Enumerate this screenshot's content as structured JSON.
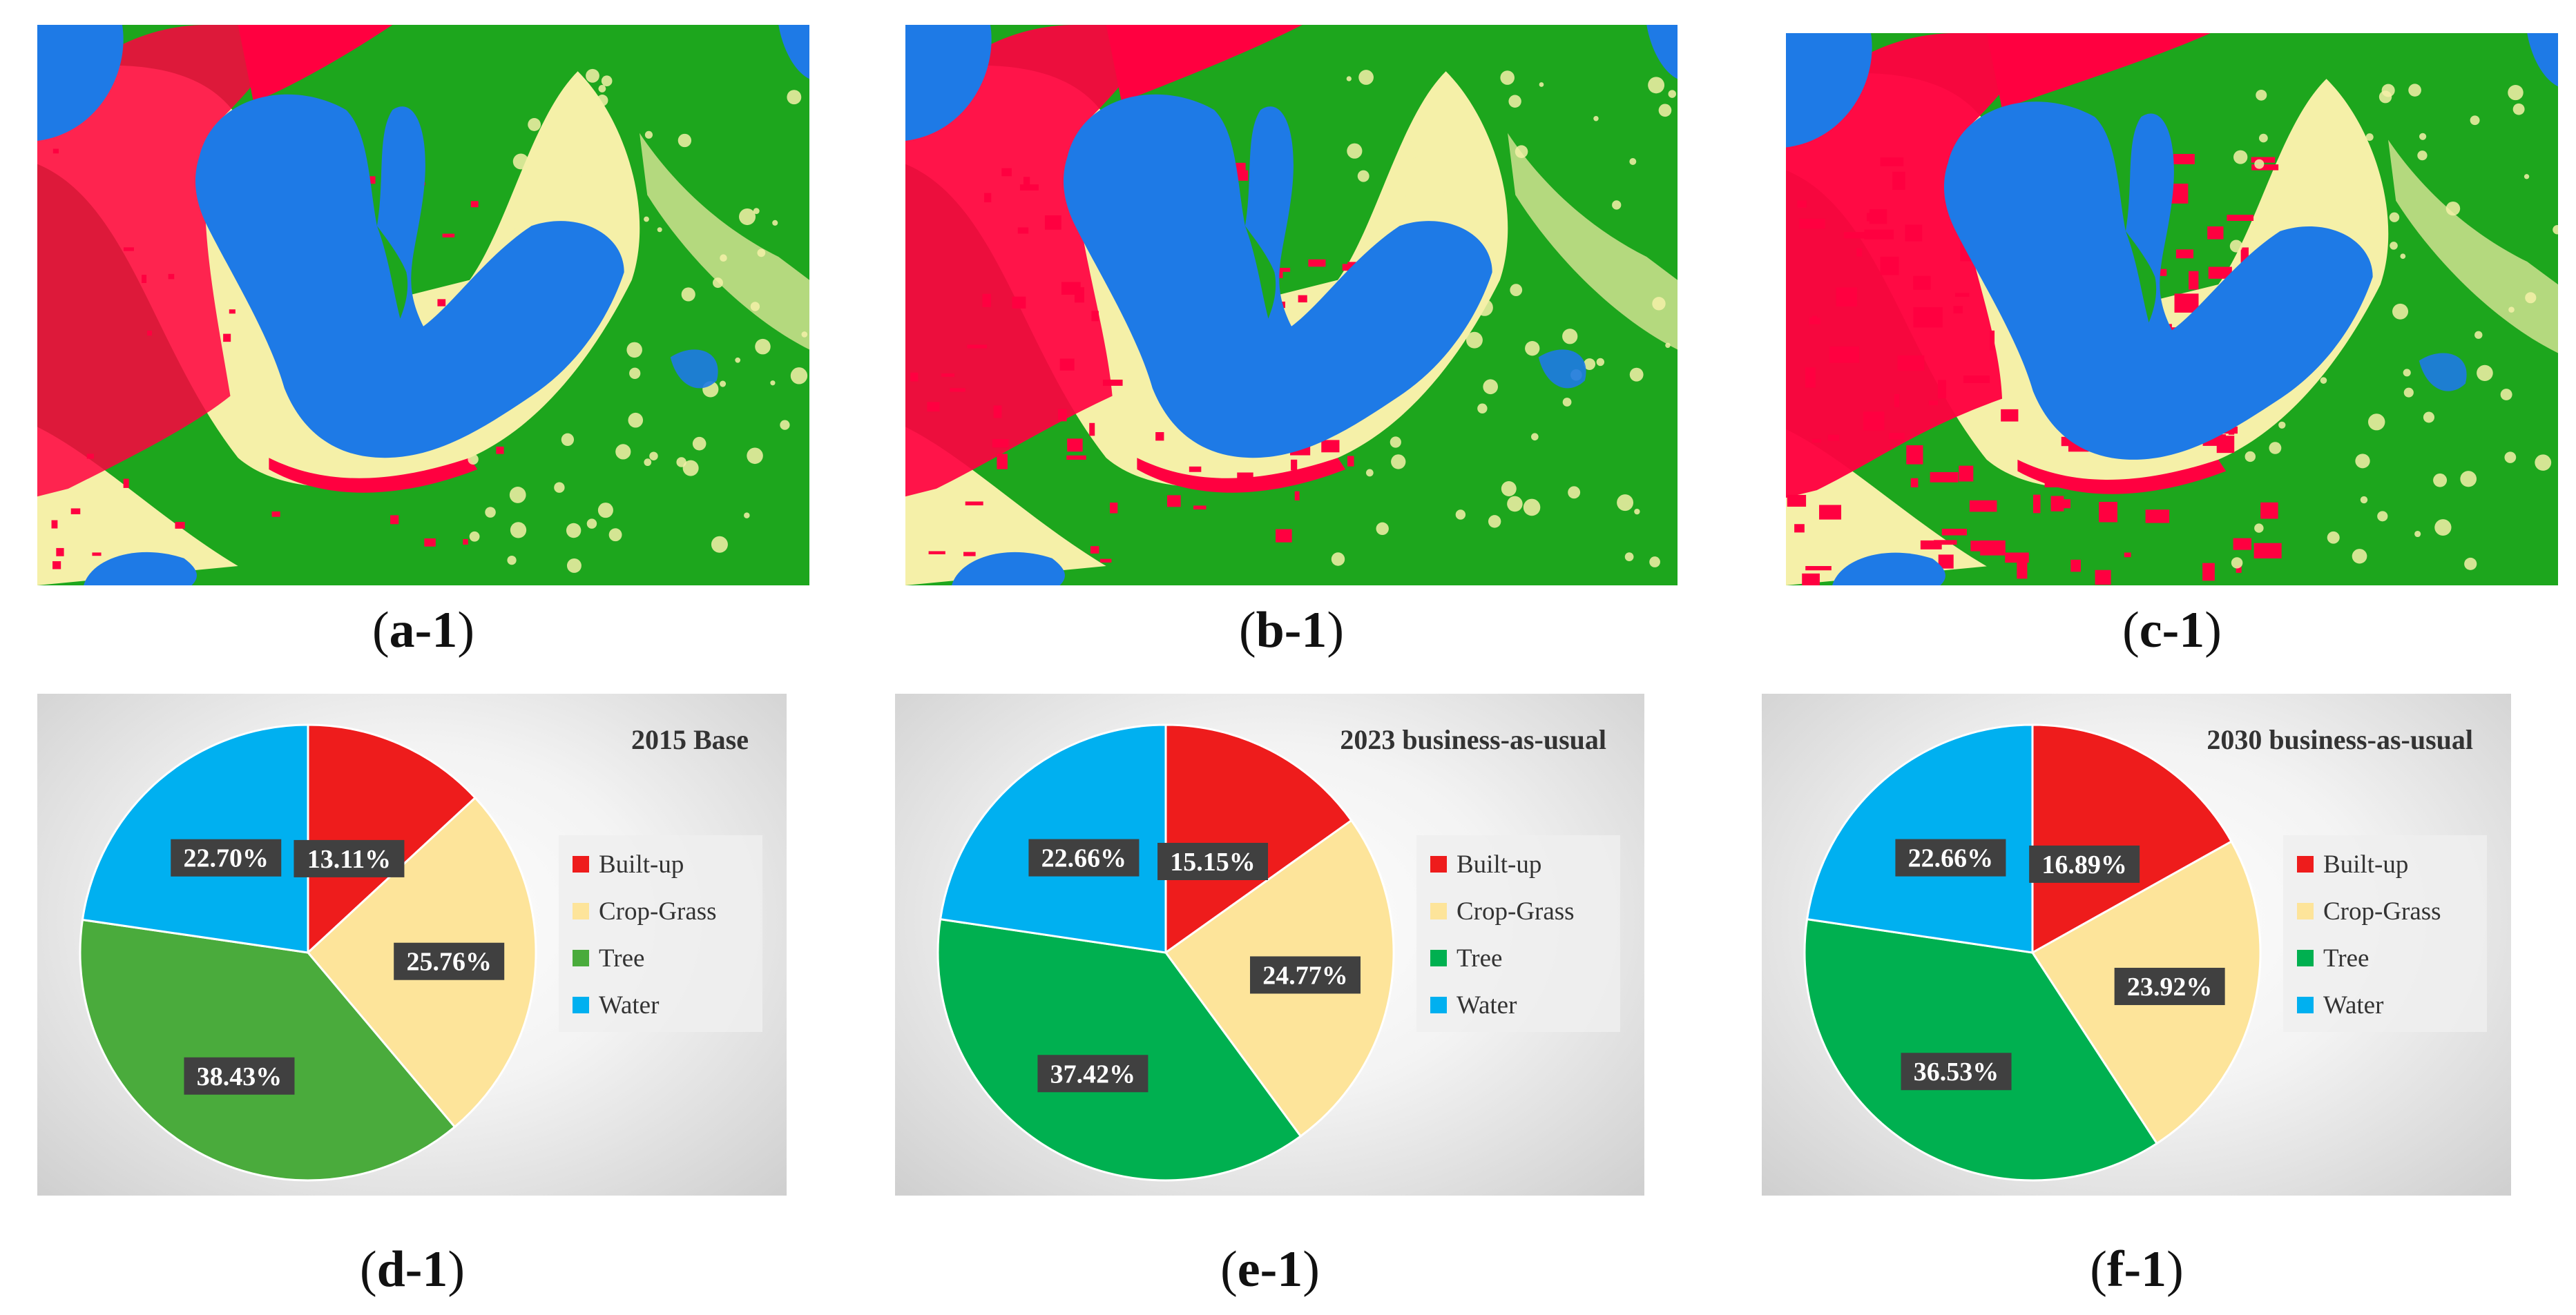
{
  "figure": {
    "map_captions": [
      {
        "letter": "a",
        "suffix": "-1"
      },
      {
        "letter": "b",
        "suffix": "-1"
      },
      {
        "letter": "c",
        "suffix": "-1"
      }
    ],
    "chart_captions": [
      {
        "letter": "d",
        "suffix": "-1"
      },
      {
        "letter": "e",
        "suffix": "-1"
      },
      {
        "letter": "f",
        "suffix": "-1"
      }
    ]
  },
  "map_colors": {
    "Built-up": "#ff0040",
    "Crop-Grass": "#f5f0a8",
    "Tree": "#1da61d",
    "Water": "#1e7ae6"
  },
  "chart_data": [
    {
      "type": "pie",
      "title": "2015 Base",
      "categories": [
        "Built-up",
        "Crop-Grass",
        "Tree",
        "Water"
      ],
      "values": [
        13.11,
        25.76,
        38.43,
        22.7
      ],
      "labels": [
        "13.11%",
        "25.76%",
        "38.43%",
        "22.70%"
      ],
      "colors": [
        "#ee1c1c",
        "#fde49a",
        "#4aab3c",
        "#00b0f0"
      ],
      "legend": "right"
    },
    {
      "type": "pie",
      "title": "2023 business-as-usual",
      "categories": [
        "Built-up",
        "Crop-Grass",
        "Tree",
        "Water"
      ],
      "values": [
        15.15,
        24.77,
        37.42,
        22.66
      ],
      "labels": [
        "15.15%",
        "24.77%",
        "37.42%",
        "22.66%"
      ],
      "colors": [
        "#ee1c1c",
        "#fde49a",
        "#00b050",
        "#00b0f0"
      ],
      "legend": "right"
    },
    {
      "type": "pie",
      "title": "2030 business-as-usual",
      "categories": [
        "Built-up",
        "Crop-Grass",
        "Tree",
        "Water"
      ],
      "values": [
        16.89,
        23.92,
        36.53,
        22.66
      ],
      "labels": [
        "16.89%",
        "23.92%",
        "36.53%",
        "22.66%"
      ],
      "colors": [
        "#ee1c1c",
        "#fde49a",
        "#00b050",
        "#00b0f0"
      ],
      "legend": "right"
    }
  ]
}
